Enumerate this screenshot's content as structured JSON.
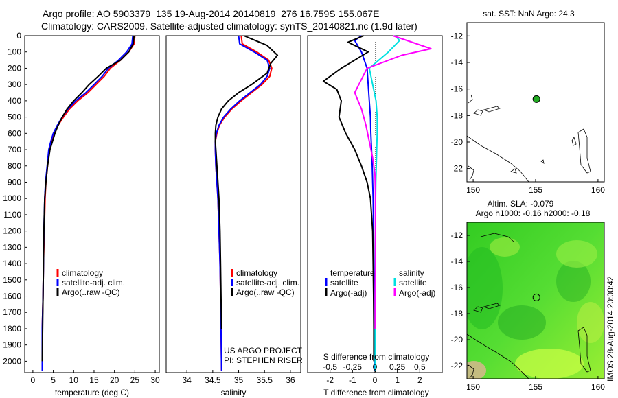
{
  "header": {
    "line1": "Argo profile: AO 5903379_135 19-Aug-2014 20140819_276 16.759S 155.067E",
    "line2": "Climatology: CARS2009. Satellite-adjusted climatology: synTS_20140821.nc (1.9d later)"
  },
  "colors": {
    "climatology": "#ff0000",
    "satellite": "#0000ff",
    "argo": "#000000",
    "sat_salinity": "#00e0e0",
    "argo_salinity": "#ff00ff",
    "float_marker": "#22aa22"
  },
  "chart_data": [
    {
      "type": "line",
      "name": "temperature-panel",
      "xlabel": "temperature (deg C)",
      "ylabel": "",
      "xlim": [
        -2,
        31
      ],
      "ylim": [
        2070,
        0
      ],
      "xticks": [
        0,
        5,
        10,
        15,
        20,
        25,
        30
      ],
      "yticks": [
        0,
        100,
        200,
        300,
        400,
        500,
        600,
        700,
        800,
        900,
        1000,
        1100,
        1200,
        1300,
        1400,
        1500,
        1600,
        1700,
        1800,
        1900,
        2000
      ],
      "legend": [
        "climatology",
        "satellite-adj. clim.",
        "Argo(..raw -QC)"
      ],
      "legend_position": "bottom-center",
      "series": [
        {
          "name": "climatology",
          "x": [
            25,
            24.8,
            23.5,
            21.5,
            19,
            17.5,
            15.5,
            13.5,
            11,
            9,
            7.5,
            6.2,
            5.2,
            4.5,
            4,
            3.6,
            3.2,
            3,
            2.8,
            2.6,
            2.5,
            2.3,
            2.3
          ],
          "y": [
            0,
            50,
            100,
            150,
            200,
            250,
            300,
            350,
            400,
            450,
            500,
            550,
            600,
            650,
            700,
            800,
            900,
            1000,
            1200,
            1400,
            1600,
            1800,
            2060
          ]
        },
        {
          "name": "satellite-adj. clim.",
          "x": [
            24.5,
            24.3,
            23,
            21,
            18.5,
            17,
            15,
            13,
            10.5,
            8.6,
            7.2,
            6,
            5,
            4.4,
            3.9,
            3.5,
            3.1,
            2.9,
            2.7,
            2.6,
            2.5,
            2.3,
            2.3
          ],
          "y": [
            0,
            50,
            100,
            150,
            200,
            250,
            300,
            350,
            400,
            450,
            500,
            550,
            600,
            650,
            700,
            800,
            900,
            1000,
            1200,
            1400,
            1600,
            1800,
            2060
          ]
        },
        {
          "name": "Argo(..raw -QC)",
          "x": [
            24.8,
            24.6,
            23.5,
            21.5,
            18,
            16,
            13.8,
            12,
            10,
            8.4,
            7.2,
            6.2,
            5.4,
            4.8,
            4.2,
            3.6,
            3.2,
            2.9,
            2.7,
            2.6,
            2.5,
            2.4,
            2.3
          ],
          "y": [
            0,
            50,
            100,
            150,
            200,
            250,
            300,
            350,
            400,
            450,
            500,
            550,
            600,
            650,
            700,
            800,
            900,
            1000,
            1200,
            1400,
            1600,
            1800,
            2000
          ]
        }
      ]
    },
    {
      "type": "line",
      "name": "salinity-panel",
      "xlabel": "salinity",
      "ylabel": "",
      "xlim": [
        33.6,
        36.2
      ],
      "ylim": [
        2070,
        0
      ],
      "xticks": [
        34,
        34.5,
        35,
        35.5,
        36
      ],
      "legend": [
        "climatology",
        "satellite-adj. clim.",
        "Argo(..raw -QC)"
      ],
      "legend_position": "bottom-center",
      "annotation": [
        "US ARGO PROJECT",
        "PI: STEPHEN RISER"
      ],
      "series": [
        {
          "name": "climatology",
          "x": [
            35.05,
            35.07,
            35.35,
            35.58,
            35.64,
            35.6,
            35.45,
            35.25,
            35.05,
            34.87,
            34.73,
            34.63,
            34.58,
            34.55,
            34.55,
            34.56,
            34.58,
            34.6,
            34.62,
            34.64,
            34.65,
            34.66,
            34.67
          ],
          "y": [
            0,
            50,
            100,
            150,
            200,
            250,
            300,
            350,
            400,
            450,
            500,
            550,
            600,
            650,
            700,
            800,
            900,
            1000,
            1200,
            1400,
            1600,
            1800,
            2060
          ]
        },
        {
          "name": "satellite-adj. clim.",
          "x": [
            35.0,
            35.02,
            35.3,
            35.55,
            35.6,
            35.55,
            35.42,
            35.22,
            35.02,
            34.85,
            34.71,
            34.62,
            34.57,
            34.55,
            34.55,
            34.56,
            34.58,
            34.6,
            34.62,
            34.64,
            34.65,
            34.66,
            34.67
          ],
          "y": [
            0,
            50,
            100,
            150,
            200,
            250,
            300,
            350,
            400,
            450,
            500,
            550,
            600,
            650,
            700,
            800,
            900,
            1000,
            1200,
            1400,
            1600,
            1800,
            2060
          ]
        },
        {
          "name": "Argo(..raw -QC)",
          "x": [
            35.1,
            35.55,
            35.75,
            35.62,
            35.55,
            35.25,
            35.0,
            34.8,
            34.67,
            34.6,
            34.56,
            34.55,
            34.55,
            34.56,
            34.58,
            34.6,
            34.62,
            34.64,
            34.65,
            34.66,
            34.67
          ],
          "y": [
            0,
            60,
            120,
            170,
            230,
            300,
            350,
            400,
            450,
            500,
            550,
            600,
            650,
            700,
            800,
            900,
            1000,
            1200,
            1400,
            1600,
            1800
          ]
        }
      ]
    },
    {
      "type": "line",
      "name": "difference-panel",
      "xlabel": "T difference from climatology",
      "xlabel2": "S difference from climatology",
      "xlim": [
        -3,
        3
      ],
      "ylim": [
        2070,
        0
      ],
      "xticks_T": [
        -2,
        -1,
        0,
        1,
        2
      ],
      "xticks_S": [
        "-0.5",
        "-0.25",
        "0",
        "0.25",
        "0.5"
      ],
      "legend_temperature": {
        "title": "temperature",
        "items": [
          "satellite",
          "Argo(-adj)"
        ]
      },
      "legend_salinity": {
        "title": "salinity",
        "items": [
          "satellite",
          "Argo(-adj)"
        ]
      },
      "legend_position": "bottom",
      "series": [
        {
          "name": "T satellite",
          "x": [
            -0.6,
            -0.9,
            -0.6,
            -0.35,
            -0.3,
            -0.25,
            -0.2,
            -0.18,
            -0.15,
            -0.12,
            -0.1,
            -0.08,
            -0.06,
            -0.05,
            -0.04,
            -0.03,
            -0.02,
            0
          ],
          "y": [
            0,
            30,
            100,
            200,
            300,
            400,
            500,
            600,
            700,
            800,
            900,
            1000,
            1200,
            1400,
            1600,
            1800,
            1900,
            2060
          ]
        },
        {
          "name": "T Argo(-adj)",
          "x": [
            -0.5,
            -1.2,
            -0.3,
            -1.5,
            -2.3,
            -1.7,
            -1.5,
            -1.6,
            -1.3,
            -0.9,
            -0.6,
            -0.35,
            -0.2,
            -0.1,
            -0.08,
            -0.06,
            -0.05,
            -0.05
          ],
          "y": [
            0,
            40,
            100,
            200,
            280,
            330,
            400,
            500,
            600,
            700,
            800,
            900,
            1000,
            1200,
            1400,
            1600,
            1800,
            2000
          ]
        },
        {
          "name": "S satellite",
          "x": [
            0.9,
            1.1,
            0.6,
            -0.25,
            -0.1,
            0.05,
            0.1,
            0.1,
            0.08,
            0.06,
            0.04,
            0.03,
            0.02,
            0.02,
            0.01,
            0.01
          ],
          "y": [
            0,
            30,
            100,
            200,
            300,
            400,
            500,
            600,
            700,
            800,
            900,
            1000,
            1200,
            1400,
            1600,
            2060
          ]
        },
        {
          "name": "S Argo(-adj)",
          "x": [
            0.8,
            2.5,
            1.2,
            -0.35,
            -0.9,
            -0.6,
            -0.4,
            -0.25,
            -0.1,
            0,
            0.02,
            0.02,
            0.02,
            0.02,
            0.01,
            0.01
          ],
          "y": [
            0,
            80,
            120,
            200,
            350,
            450,
            550,
            650,
            750,
            850,
            950,
            1050,
            1200,
            1400,
            1600,
            1800
          ]
        }
      ]
    },
    {
      "type": "scatter",
      "name": "sst-map",
      "title": "sat. SST: NaN Argo: 24.3",
      "xlim": [
        149.5,
        160.5
      ],
      "ylim": [
        -23,
        -11
      ],
      "xticks": [
        150,
        155,
        160
      ],
      "yticks": [
        -12,
        -14,
        -16,
        -18,
        -20,
        -22
      ],
      "points": [
        {
          "lon": 155.067,
          "lat": -16.759
        }
      ]
    },
    {
      "type": "heatmap",
      "name": "sla-map",
      "title_line1": "Altim. SLA: -0.079",
      "title_line2": "Argo h1000: -0.16 h2000: -0.18",
      "xlim": [
        149.5,
        160.5
      ],
      "ylim": [
        -23,
        -11
      ],
      "xticks": [
        150,
        155,
        160
      ],
      "yticks": [
        -12,
        -14,
        -16,
        -18,
        -20,
        -22
      ],
      "points": [
        {
          "lon": 155.067,
          "lat": -16.759
        }
      ]
    }
  ],
  "stamp": "IMOS 28-Aug-2014 20:00:42"
}
